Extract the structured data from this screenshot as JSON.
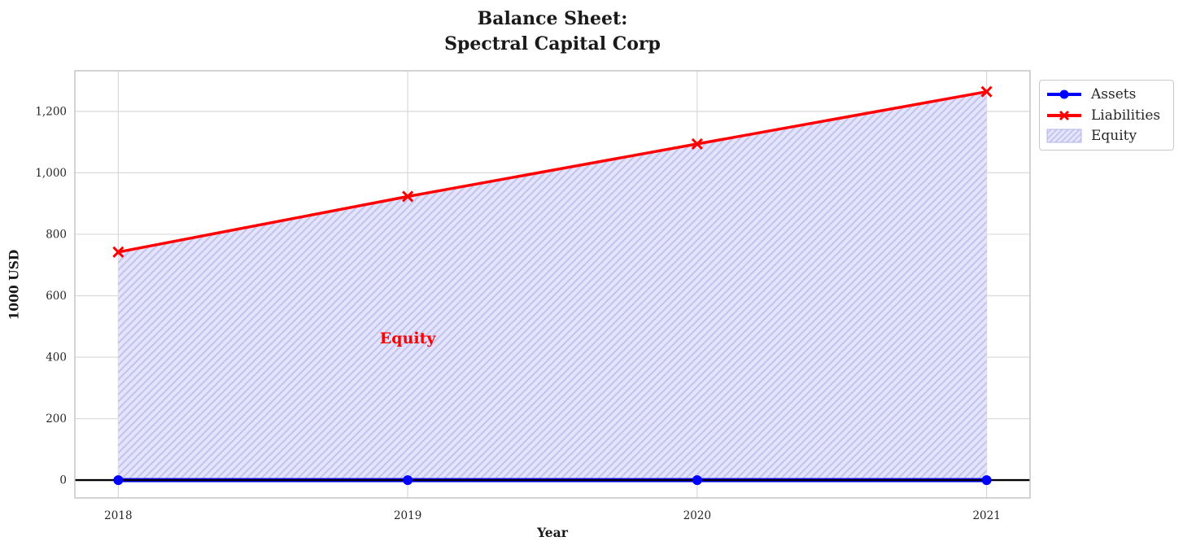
{
  "title": {
    "line1": "Balance Sheet:",
    "line2": "Spectral Capital Corp"
  },
  "chart_data": {
    "type": "line",
    "x": [
      2018,
      2019,
      2020,
      2021
    ],
    "series": [
      {
        "name": "Assets",
        "values": [
          0,
          0,
          0,
          0
        ],
        "color": "#0000ff",
        "marker": "circle"
      },
      {
        "name": "Liabilities",
        "values": [
          742,
          923,
          1094,
          1264
        ],
        "color": "#ff0000",
        "marker": "x"
      }
    ],
    "fill": {
      "name": "Equity",
      "between": [
        "Assets",
        "Liabilities"
      ],
      "facecolor": "#e4e4fb",
      "hatch_color": "#c4c4f0",
      "hatch": "//"
    },
    "axhline": {
      "y": 0,
      "color": "#000000"
    },
    "annotation": {
      "text": "Equity",
      "x": 2019,
      "y": 462,
      "color": "#ff0000"
    },
    "xlabel": "Year",
    "ylabel": "1000 USD",
    "xlim": [
      2017.85,
      2021.15
    ],
    "ylim": [
      -58,
      1332
    ],
    "xticks": [
      2018,
      2019,
      2020,
      2021
    ],
    "xtick_labels": [
      "2018",
      "2019",
      "2020",
      "2021"
    ],
    "yticks": [
      0,
      200,
      400,
      600,
      800,
      1000,
      1200
    ],
    "ytick_labels": [
      "0",
      "200",
      "400",
      "600",
      "800",
      "1,000",
      "1,200"
    ],
    "grid": true,
    "grid_color": "#d9d9d9",
    "spine_color": "#c2c2c2",
    "legend_position": "upper-right-outside"
  },
  "legend": {
    "items": [
      {
        "label": "Assets",
        "type": "line",
        "color": "#0000ff",
        "marker": "circle"
      },
      {
        "label": "Liabilities",
        "type": "line",
        "color": "#ff0000",
        "marker": "x"
      },
      {
        "label": "Equity",
        "type": "patch",
        "facecolor": "#e4e4fb",
        "hatchcolor": "#c4c4f0",
        "edgecolor": "#b4b4e6"
      }
    ]
  }
}
